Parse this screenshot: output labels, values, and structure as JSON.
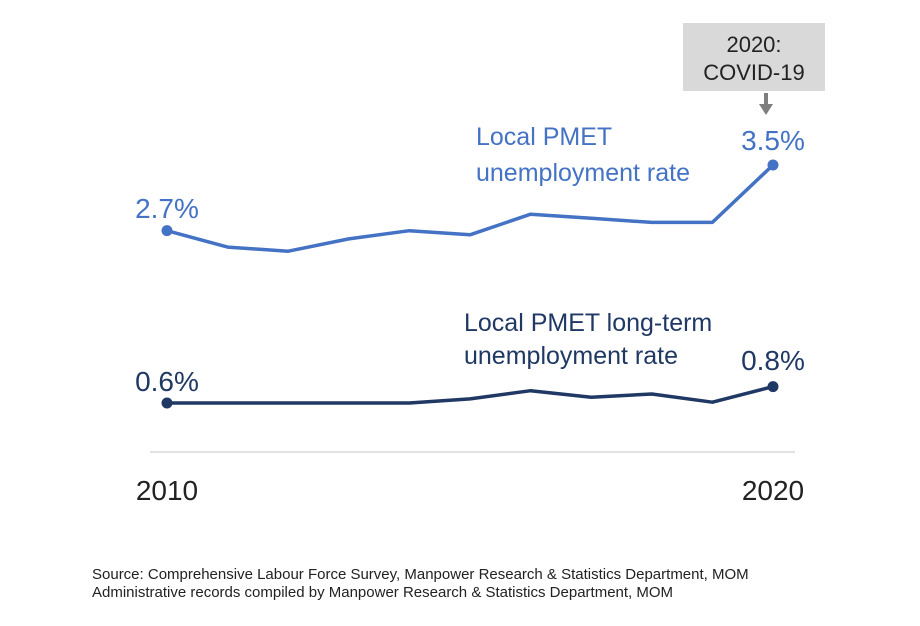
{
  "colors": {
    "unemployment": "#4472C4",
    "long_term": "#203864",
    "callout_bg": "#D9D9D9",
    "callout_arrow": "#7F7F7F",
    "axis": "#D9D9D9",
    "text": "#222222"
  },
  "chart_data": {
    "type": "line",
    "x": [
      2010,
      2011,
      2012,
      2013,
      2014,
      2015,
      2016,
      2017,
      2018,
      2019,
      2020
    ],
    "x_tick_labels": [
      "2010",
      "2020"
    ],
    "ylim": [
      0,
      4
    ],
    "series": [
      {
        "name": "Local PMET unemployment rate",
        "name_lines": [
          "Local PMET",
          "unemployment rate"
        ],
        "values": [
          2.7,
          2.5,
          2.45,
          2.6,
          2.7,
          2.65,
          2.9,
          2.85,
          2.8,
          2.8,
          3.5
        ],
        "start_label": "2.7%",
        "end_label": "3.5%"
      },
      {
        "name": "Local PMET long-term unemployment rate",
        "name_lines": [
          "Local PMET long-term",
          "unemployment rate"
        ],
        "values": [
          0.6,
          0.6,
          0.6,
          0.6,
          0.6,
          0.65,
          0.75,
          0.67,
          0.71,
          0.61,
          0.8
        ],
        "start_label": "0.6%",
        "end_label": "0.8%"
      }
    ],
    "annotation": {
      "lines": [
        "2020:",
        "COVID-19"
      ],
      "x": 2020
    }
  },
  "source_lines": [
    "Source: Comprehensive Labour Force Survey, Manpower Research & Statistics Department, MOM",
    "Administrative records compiled by Manpower Research & Statistics Department, MOM"
  ]
}
